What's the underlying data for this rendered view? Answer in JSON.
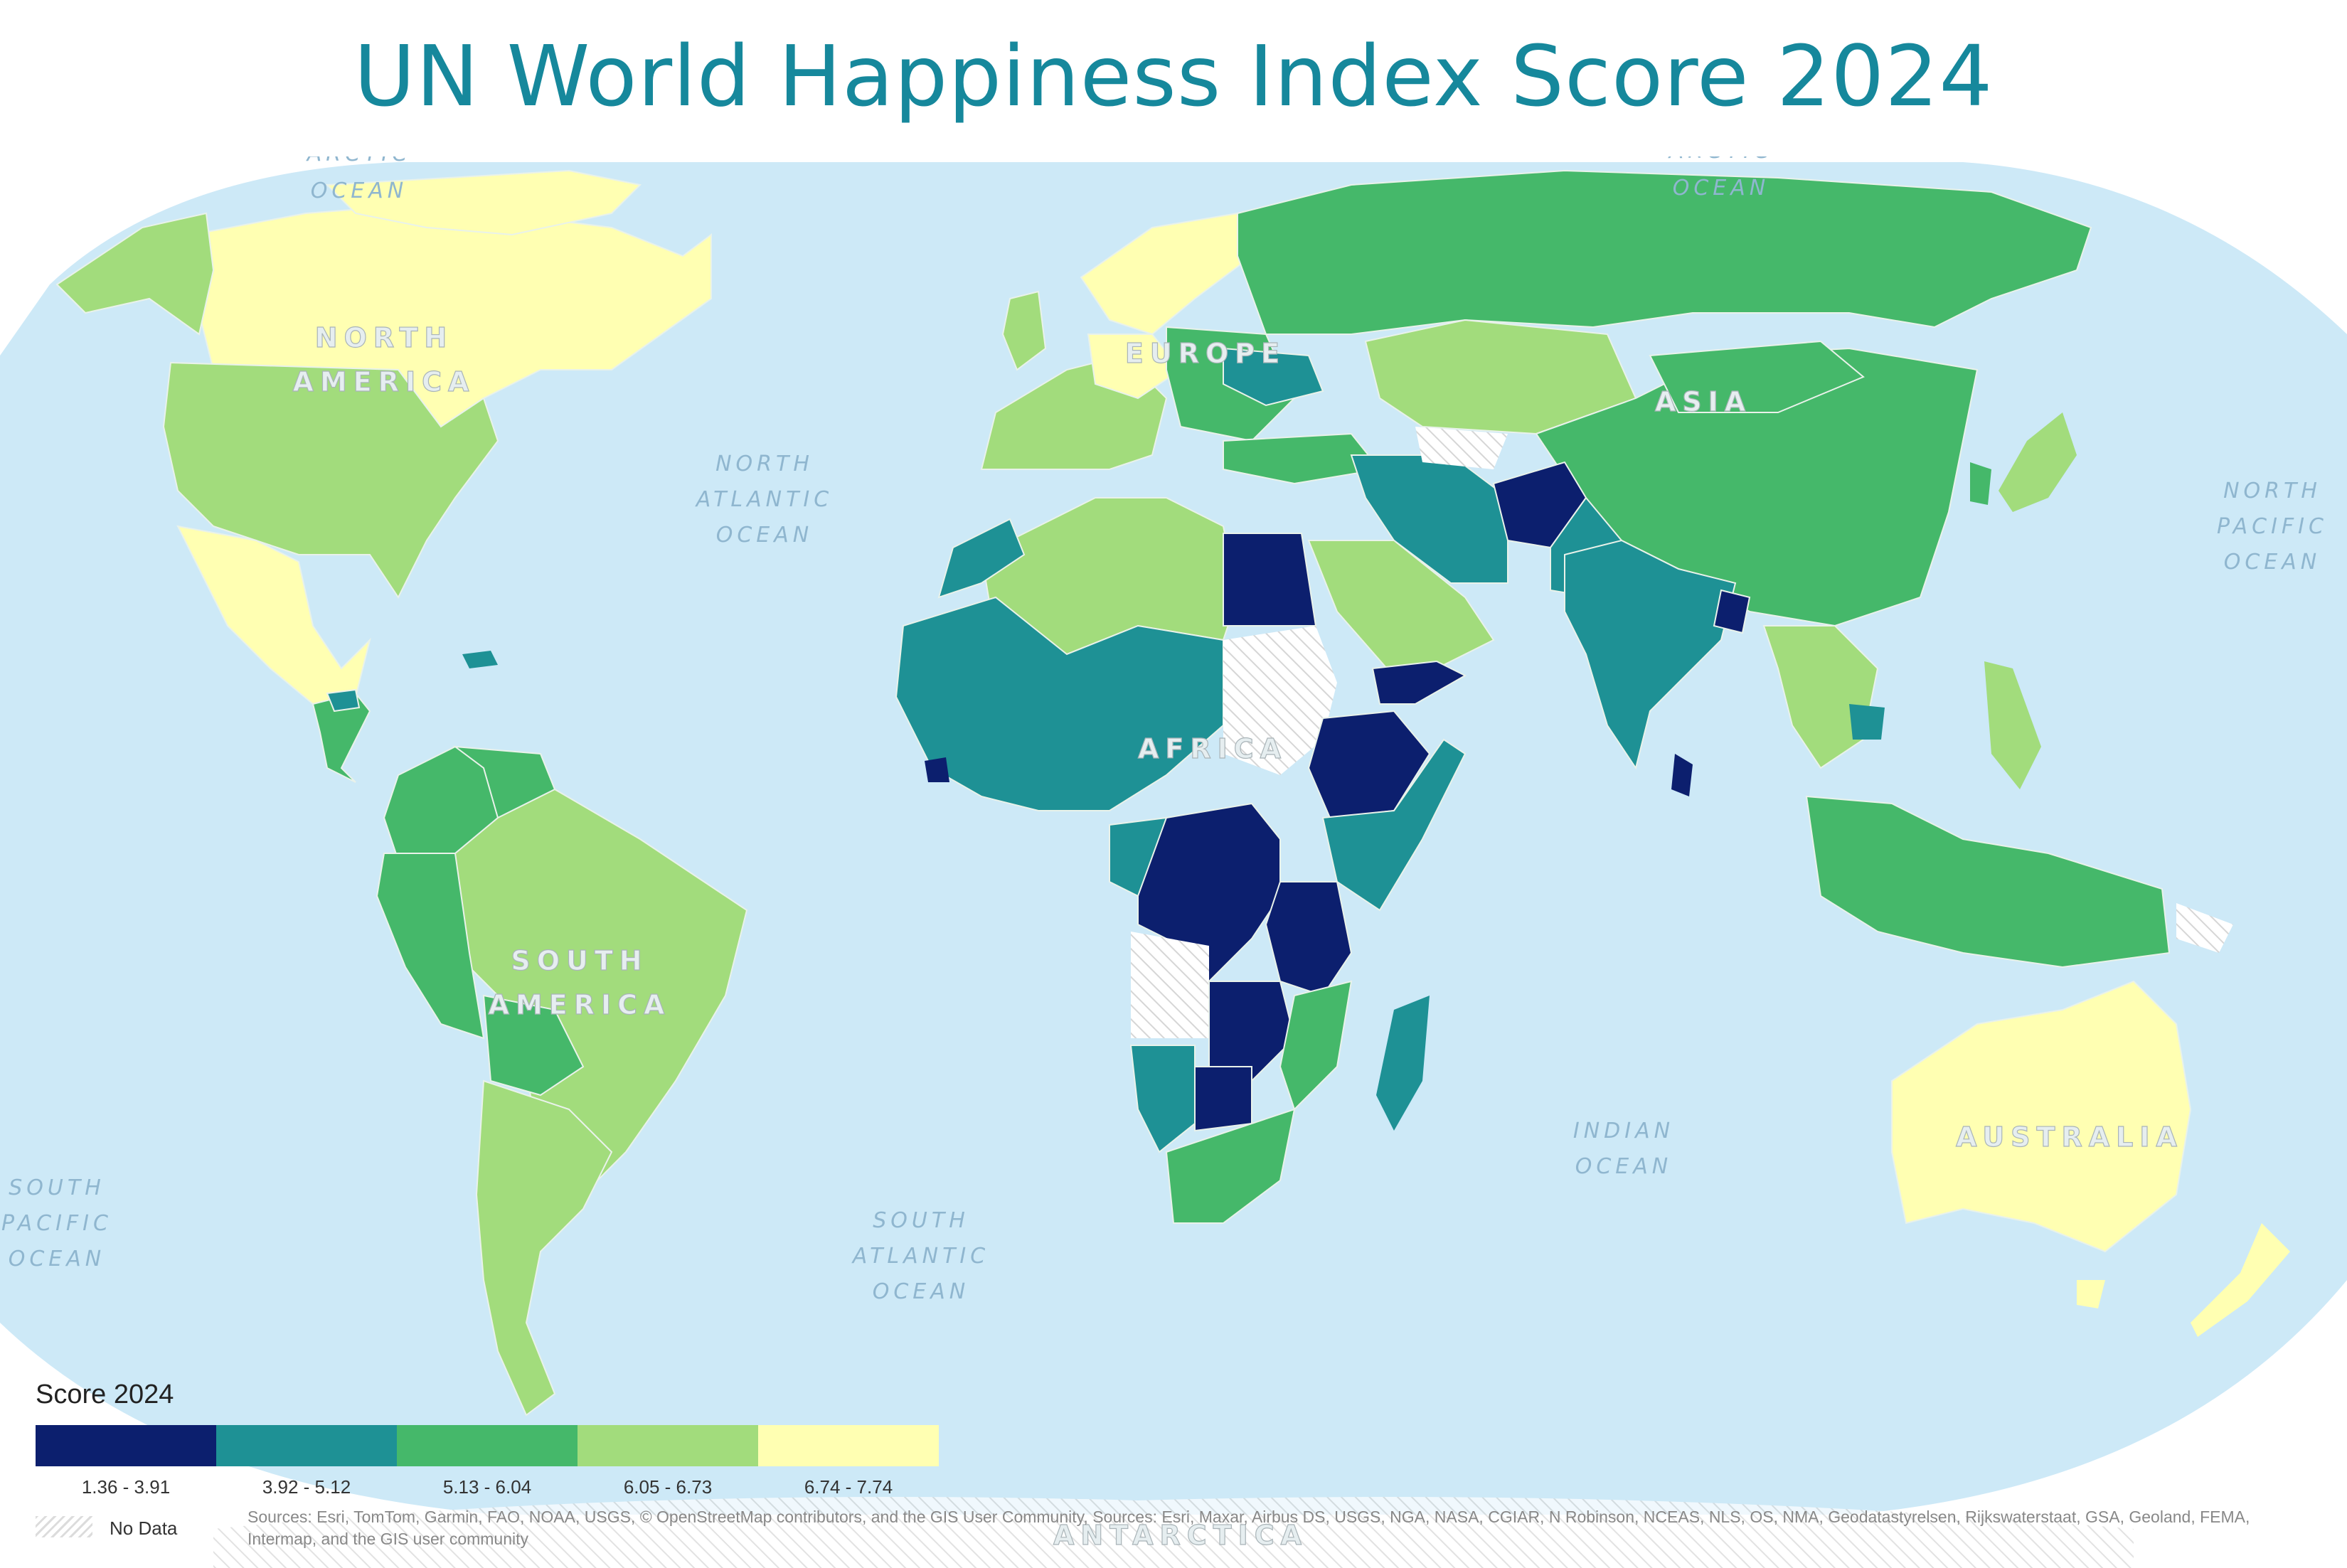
{
  "title": "UN World Happiness Index Score 2024",
  "oceans": {
    "arctic_w": [
      "ARCTIC",
      "OCEAN"
    ],
    "arctic_e": [
      "ARCTIC",
      "OCEAN"
    ],
    "north_atlantic": [
      "NORTH",
      "ATLANTIC",
      "OCEAN"
    ],
    "north_pacific": [
      "NORTH",
      "PACIFIC",
      "OCEAN"
    ],
    "south_pacific": [
      "SOUTH",
      "PACIFIC",
      "OCEAN"
    ],
    "south_atlantic": [
      "SOUTH",
      "ATLANTIC",
      "OCEAN"
    ],
    "indian": [
      "INDIAN",
      "OCEAN"
    ]
  },
  "continents": {
    "north_america": [
      "NORTH",
      "AMERICA"
    ],
    "south_america": [
      "SOUTH",
      "AMERICA"
    ],
    "europe": "EUROPE",
    "asia": "ASIA",
    "africa": "AFRICA",
    "australia": "AUSTRALIA",
    "antarctica": "ANTARCTICA"
  },
  "legend": {
    "title": "Score 2024",
    "classes": [
      {
        "label": "1.36 - 3.91",
        "color": "#0c1f6e"
      },
      {
        "label": "3.92 - 5.12",
        "color": "#1e9195"
      },
      {
        "label": "5.13 - 6.04",
        "color": "#45b86a"
      },
      {
        "label": "6.05 - 6.73",
        "color": "#a2dc7c"
      },
      {
        "label": "6.74 - 7.74",
        "color": "#ffffb2"
      }
    ],
    "no_data_label": "No Data"
  },
  "colors": {
    "ocean": "#cde9f7",
    "title": "#16889c",
    "border": "#e9f2ea"
  },
  "sources": "Sources: Esri, TomTom, Garmin, FAO, NOAA, USGS, © OpenStreetMap contributors, and the GIS User Community, Sources: Esri, Maxar, Airbus DS, USGS, NGA, NASA, CGIAR, N Robinson, NCEAS, NLS, OS, NMA, Geodatastyrelsen, Rijkswaterstaat, GSA, Geoland, FEMA, Intermap, and the GIS user community"
}
